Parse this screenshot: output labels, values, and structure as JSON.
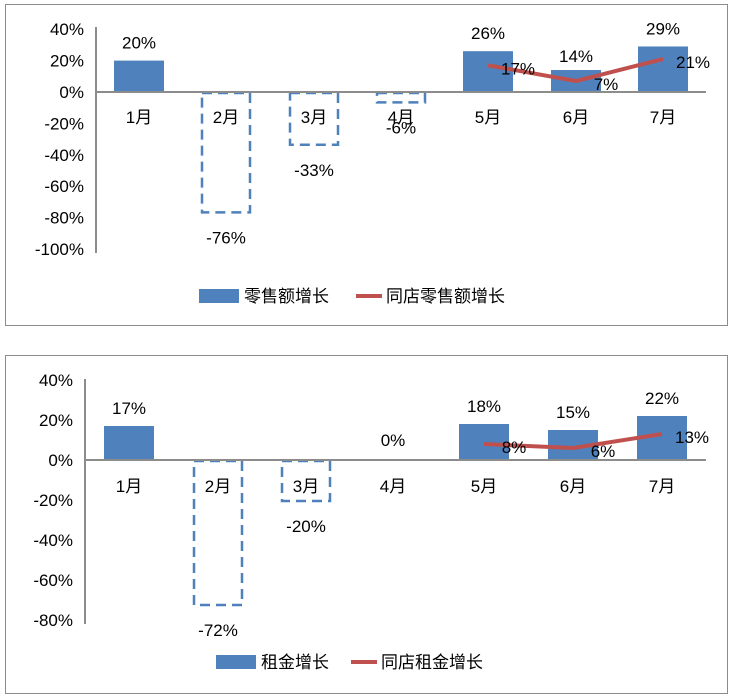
{
  "chart_data": [
    {
      "type": "bar",
      "title": "",
      "xlabel": "",
      "ylabel": "",
      "categories": [
        "1月",
        "2月",
        "3月",
        "4月",
        "5月",
        "6月",
        "7月"
      ],
      "series": [
        {
          "name": "零售额增长",
          "kind": "bar",
          "color": "#4F81BD",
          "values": [
            20,
            -76,
            -33,
            -6,
            26,
            14,
            29
          ],
          "labels": [
            "20%",
            "-76%",
            "-33%",
            "-6%",
            "26%",
            "14%",
            "29%"
          ],
          "negative_style": "dashed-outline"
        },
        {
          "name": "同店零售额增长",
          "kind": "line",
          "color": "#C0504D",
          "values": [
            null,
            null,
            null,
            null,
            17,
            7,
            21
          ],
          "labels": [
            "",
            "",
            "",
            "",
            "17%",
            "7%",
            "21%"
          ]
        }
      ],
      "yticks": [
        "40%",
        "20%",
        "0%",
        "-20%",
        "-40%",
        "-60%",
        "-80%",
        "-100%"
      ],
      "ylim": [
        -100,
        40
      ],
      "grid": false,
      "legend_position": "bottom"
    },
    {
      "type": "bar",
      "title": "",
      "xlabel": "",
      "ylabel": "",
      "categories": [
        "1月",
        "2月",
        "3月",
        "4月",
        "5月",
        "6月",
        "7月"
      ],
      "series": [
        {
          "name": "租金增长",
          "kind": "bar",
          "color": "#4F81BD",
          "values": [
            17,
            -72,
            -20,
            0,
            18,
            15,
            22
          ],
          "labels": [
            "17%",
            "-72%",
            "-20%",
            "0%",
            "18%",
            "15%",
            "22%"
          ],
          "negative_style": "dashed-outline"
        },
        {
          "name": "同店租金增长",
          "kind": "line",
          "color": "#C0504D",
          "values": [
            null,
            null,
            null,
            null,
            8,
            6,
            13
          ],
          "labels": [
            "",
            "",
            "",
            "",
            "8%",
            "6%",
            "13%"
          ]
        }
      ],
      "yticks": [
        "40%",
        "20%",
        "0%",
        "-20%",
        "-40%",
        "-60%",
        "-80%"
      ],
      "ylim": [
        -80,
        40
      ],
      "grid": false,
      "legend_position": "bottom"
    }
  ]
}
